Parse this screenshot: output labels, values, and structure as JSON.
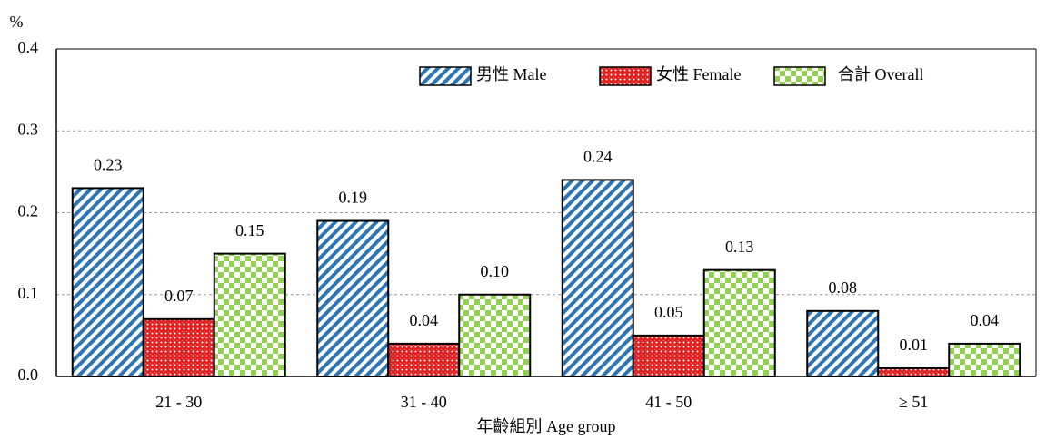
{
  "chart_data": {
    "type": "bar",
    "y_unit": "%",
    "x_label": "年齡組別 Age group",
    "categories": [
      "21 - 30",
      "31 - 40",
      "41 - 50",
      "≥ 51"
    ],
    "series": [
      {
        "name": "男性 Male",
        "color": "#2e75b6",
        "pattern": "stripes",
        "values": [
          0.23,
          0.19,
          0.24,
          0.08
        ],
        "value_labels": [
          "0.23",
          "0.19",
          "0.24",
          "0.08"
        ]
      },
      {
        "name": "女性 Female",
        "color": "#e02020",
        "pattern": "crosshatch",
        "values": [
          0.07,
          0.04,
          0.05,
          0.01
        ],
        "value_labels": [
          "0.07",
          "0.04",
          "0.05",
          "0.01"
        ]
      },
      {
        "name": "合計 Overall",
        "color": "#92d050",
        "pattern": "checker",
        "values": [
          0.15,
          0.1,
          0.13,
          0.04
        ],
        "value_labels": [
          "0.15",
          "0.10",
          "0.13",
          "0.04"
        ]
      }
    ],
    "ylim": [
      0,
      0.4
    ],
    "yticks": [
      {
        "value": 0,
        "label": "0.0"
      },
      0.1,
      0.2,
      0.3,
      0.4
    ],
    "grid": true,
    "legend": "upper right"
  }
}
